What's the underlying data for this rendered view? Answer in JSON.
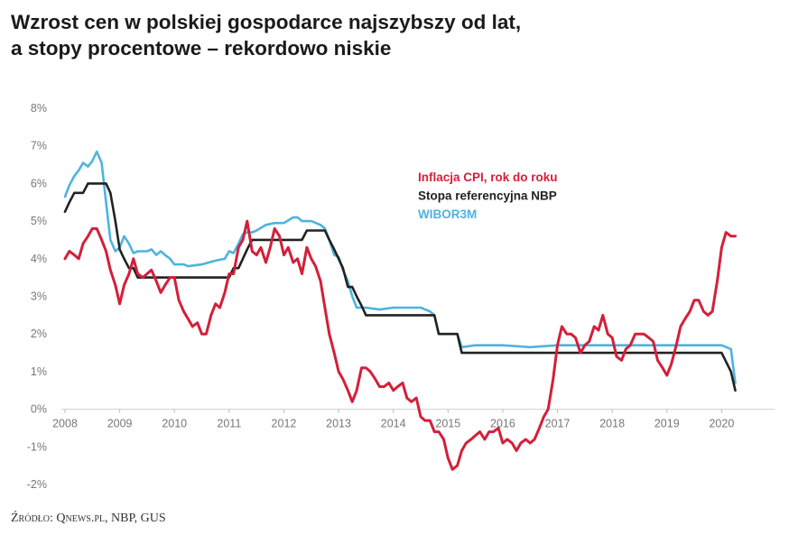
{
  "title_line1": "Wzrost cen w polskiej gospodarce najszybszy od lat,",
  "title_line2": "a stopy procentowe – rekordowo niskie",
  "source": "Źródło: Qnews.pl, NBP, GUS",
  "chart_data": {
    "type": "line",
    "title": "Wzrost cen w polskiej gospodarce najszybszy od lat, a stopy procentowe – rekordowo niskie",
    "xlabel": "",
    "ylabel": "",
    "xlim": [
      2008,
      2021
    ],
    "ylim": [
      -2,
      8
    ],
    "x_ticks": [
      "2008",
      "2009",
      "2010",
      "2011",
      "2012",
      "2013",
      "2014",
      "2015",
      "2016",
      "2017",
      "2018",
      "2019",
      "2020"
    ],
    "y_ticks": [
      "-2%",
      "-1%",
      "0%",
      "1%",
      "2%",
      "3%",
      "4%",
      "5%",
      "6%",
      "7%",
      "8%"
    ],
    "grid": false,
    "legend_position": "center-right",
    "series": [
      {
        "name": "Inflacja CPI, rok do roku",
        "color": "#d41f3a",
        "x": [
          2008.0,
          2008.08,
          2008.17,
          2008.25,
          2008.33,
          2008.42,
          2008.5,
          2008.58,
          2008.67,
          2008.75,
          2008.83,
          2008.92,
          2009.0,
          2009.08,
          2009.17,
          2009.25,
          2009.33,
          2009.42,
          2009.5,
          2009.58,
          2009.67,
          2009.75,
          2009.83,
          2009.92,
          2010.0,
          2010.08,
          2010.17,
          2010.25,
          2010.33,
          2010.42,
          2010.5,
          2010.58,
          2010.67,
          2010.75,
          2010.83,
          2010.92,
          2011.0,
          2011.08,
          2011.17,
          2011.25,
          2011.33,
          2011.42,
          2011.5,
          2011.58,
          2011.67,
          2011.75,
          2011.83,
          2011.92,
          2012.0,
          2012.08,
          2012.17,
          2012.25,
          2012.33,
          2012.42,
          2012.5,
          2012.58,
          2012.67,
          2012.75,
          2012.83,
          2012.92,
          2013.0,
          2013.08,
          2013.17,
          2013.25,
          2013.33,
          2013.42,
          2013.5,
          2013.58,
          2013.67,
          2013.75,
          2013.83,
          2013.92,
          2014.0,
          2014.08,
          2014.17,
          2014.25,
          2014.33,
          2014.42,
          2014.5,
          2014.58,
          2014.67,
          2014.75,
          2014.83,
          2014.92,
          2015.0,
          2015.08,
          2015.17,
          2015.25,
          2015.33,
          2015.42,
          2015.5,
          2015.58,
          2015.67,
          2015.75,
          2015.83,
          2015.92,
          2016.0,
          2016.08,
          2016.17,
          2016.25,
          2016.33,
          2016.42,
          2016.5,
          2016.58,
          2016.67,
          2016.75,
          2016.83,
          2016.92,
          2017.0,
          2017.08,
          2017.17,
          2017.25,
          2017.33,
          2017.42,
          2017.5,
          2017.58,
          2017.67,
          2017.75,
          2017.83,
          2017.92,
          2018.0,
          2018.08,
          2018.17,
          2018.25,
          2018.33,
          2018.42,
          2018.5,
          2018.58,
          2018.67,
          2018.75,
          2018.83,
          2018.92,
          2019.0,
          2019.08,
          2019.17,
          2019.25,
          2019.33,
          2019.42,
          2019.5,
          2019.58,
          2019.67,
          2019.75,
          2019.83,
          2019.92,
          2020.0,
          2020.08,
          2020.17,
          2020.25
        ],
        "values": [
          4.0,
          4.2,
          4.1,
          4.0,
          4.4,
          4.6,
          4.8,
          4.8,
          4.5,
          4.2,
          3.7,
          3.3,
          2.8,
          3.3,
          3.6,
          4.0,
          3.6,
          3.5,
          3.6,
          3.7,
          3.4,
          3.1,
          3.3,
          3.5,
          3.5,
          2.9,
          2.6,
          2.4,
          2.2,
          2.3,
          2.0,
          2.0,
          2.5,
          2.8,
          2.7,
          3.1,
          3.6,
          3.6,
          4.3,
          4.5,
          5.0,
          4.2,
          4.1,
          4.3,
          3.9,
          4.3,
          4.8,
          4.6,
          4.1,
          4.3,
          3.9,
          4.0,
          3.6,
          4.3,
          4.0,
          3.8,
          3.4,
          2.7,
          2.0,
          1.5,
          1.0,
          0.8,
          0.5,
          0.2,
          0.5,
          1.1,
          1.1,
          1.0,
          0.8,
          0.6,
          0.6,
          0.7,
          0.5,
          0.6,
          0.7,
          0.3,
          0.2,
          0.3,
          -0.2,
          -0.3,
          -0.3,
          -0.6,
          -0.6,
          -0.8,
          -1.3,
          -1.6,
          -1.5,
          -1.1,
          -0.9,
          -0.8,
          -0.7,
          -0.6,
          -0.8,
          -0.6,
          -0.6,
          -0.5,
          -0.9,
          -0.8,
          -0.9,
          -1.1,
          -0.9,
          -0.8,
          -0.9,
          -0.8,
          -0.5,
          -0.2,
          0.0,
          0.8,
          1.7,
          2.2,
          2.0,
          2.0,
          1.9,
          1.5,
          1.7,
          1.8,
          2.2,
          2.1,
          2.5,
          2.0,
          1.9,
          1.4,
          1.3,
          1.6,
          1.7,
          2.0,
          2.0,
          2.0,
          1.9,
          1.8,
          1.3,
          1.1,
          0.9,
          1.2,
          1.7,
          2.2,
          2.4,
          2.6,
          2.9,
          2.9,
          2.6,
          2.5,
          2.6,
          3.4,
          4.3,
          4.7,
          4.6,
          4.6
        ]
      },
      {
        "name": "Stopa referencyjna NBP",
        "color": "#222222",
        "x": [
          2008.0,
          2008.08,
          2008.17,
          2008.25,
          2008.33,
          2008.42,
          2008.5,
          2008.58,
          2008.67,
          2008.75,
          2008.83,
          2008.92,
          2009.0,
          2009.08,
          2009.17,
          2009.25,
          2009.33,
          2009.42,
          2009.5,
          2010.0,
          2010.5,
          2011.0,
          2011.08,
          2011.17,
          2011.25,
          2011.33,
          2011.42,
          2011.5,
          2012.0,
          2012.33,
          2012.42,
          2012.5,
          2012.75,
          2012.83,
          2012.92,
          2013.0,
          2013.08,
          2013.17,
          2013.25,
          2013.33,
          2013.42,
          2013.5,
          2014.0,
          2014.5,
          2014.75,
          2014.83,
          2015.0,
          2015.17,
          2015.25,
          2016.0,
          2017.0,
          2018.0,
          2019.0,
          2020.0,
          2020.17,
          2020.25
        ],
        "values": [
          5.25,
          5.5,
          5.75,
          5.75,
          5.75,
          6.0,
          6.0,
          6.0,
          6.0,
          6.0,
          5.75,
          5.0,
          4.25,
          4.0,
          3.75,
          3.75,
          3.5,
          3.5,
          3.5,
          3.5,
          3.5,
          3.5,
          3.75,
          3.75,
          4.0,
          4.25,
          4.5,
          4.5,
          4.5,
          4.5,
          4.75,
          4.75,
          4.75,
          4.5,
          4.25,
          4.0,
          3.75,
          3.25,
          3.25,
          3.0,
          2.75,
          2.5,
          2.5,
          2.5,
          2.5,
          2.0,
          2.0,
          2.0,
          1.5,
          1.5,
          1.5,
          1.5,
          1.5,
          1.5,
          1.0,
          0.5
        ]
      },
      {
        "name": "WIBOR3M",
        "color": "#4fb3dc",
        "x": [
          2008.0,
          2008.08,
          2008.17,
          2008.25,
          2008.33,
          2008.42,
          2008.5,
          2008.58,
          2008.67,
          2008.75,
          2008.83,
          2008.92,
          2009.0,
          2009.08,
          2009.17,
          2009.25,
          2009.33,
          2009.42,
          2009.5,
          2009.58,
          2009.67,
          2009.75,
          2009.83,
          2009.92,
          2010.0,
          2010.17,
          2010.25,
          2010.5,
          2010.75,
          2010.92,
          2011.0,
          2011.08,
          2011.17,
          2011.25,
          2011.33,
          2011.42,
          2011.5,
          2011.67,
          2011.83,
          2012.0,
          2012.17,
          2012.25,
          2012.33,
          2012.5,
          2012.67,
          2012.75,
          2012.83,
          2012.92,
          2013.0,
          2013.08,
          2013.17,
          2013.25,
          2013.33,
          2013.5,
          2013.75,
          2014.0,
          2014.5,
          2014.67,
          2014.75,
          2014.83,
          2015.0,
          2015.17,
          2015.25,
          2015.5,
          2016.0,
          2016.5,
          2017.0,
          2018.0,
          2019.0,
          2020.0,
          2020.17,
          2020.25
        ],
        "values": [
          5.65,
          5.95,
          6.2,
          6.35,
          6.55,
          6.45,
          6.6,
          6.85,
          6.55,
          5.5,
          4.5,
          4.2,
          4.3,
          4.6,
          4.4,
          4.15,
          4.2,
          4.2,
          4.2,
          4.25,
          4.1,
          4.2,
          4.1,
          4.0,
          3.85,
          3.85,
          3.8,
          3.85,
          3.95,
          4.0,
          4.2,
          4.15,
          4.4,
          4.65,
          4.7,
          4.7,
          4.75,
          4.9,
          4.95,
          4.95,
          5.1,
          5.1,
          5.0,
          5.0,
          4.9,
          4.8,
          4.5,
          4.1,
          4.05,
          3.7,
          3.4,
          3.0,
          2.7,
          2.7,
          2.65,
          2.7,
          2.7,
          2.6,
          2.5,
          2.0,
          2.0,
          2.0,
          1.65,
          1.7,
          1.7,
          1.65,
          1.7,
          1.7,
          1.7,
          1.7,
          1.6,
          0.7
        ]
      }
    ]
  }
}
